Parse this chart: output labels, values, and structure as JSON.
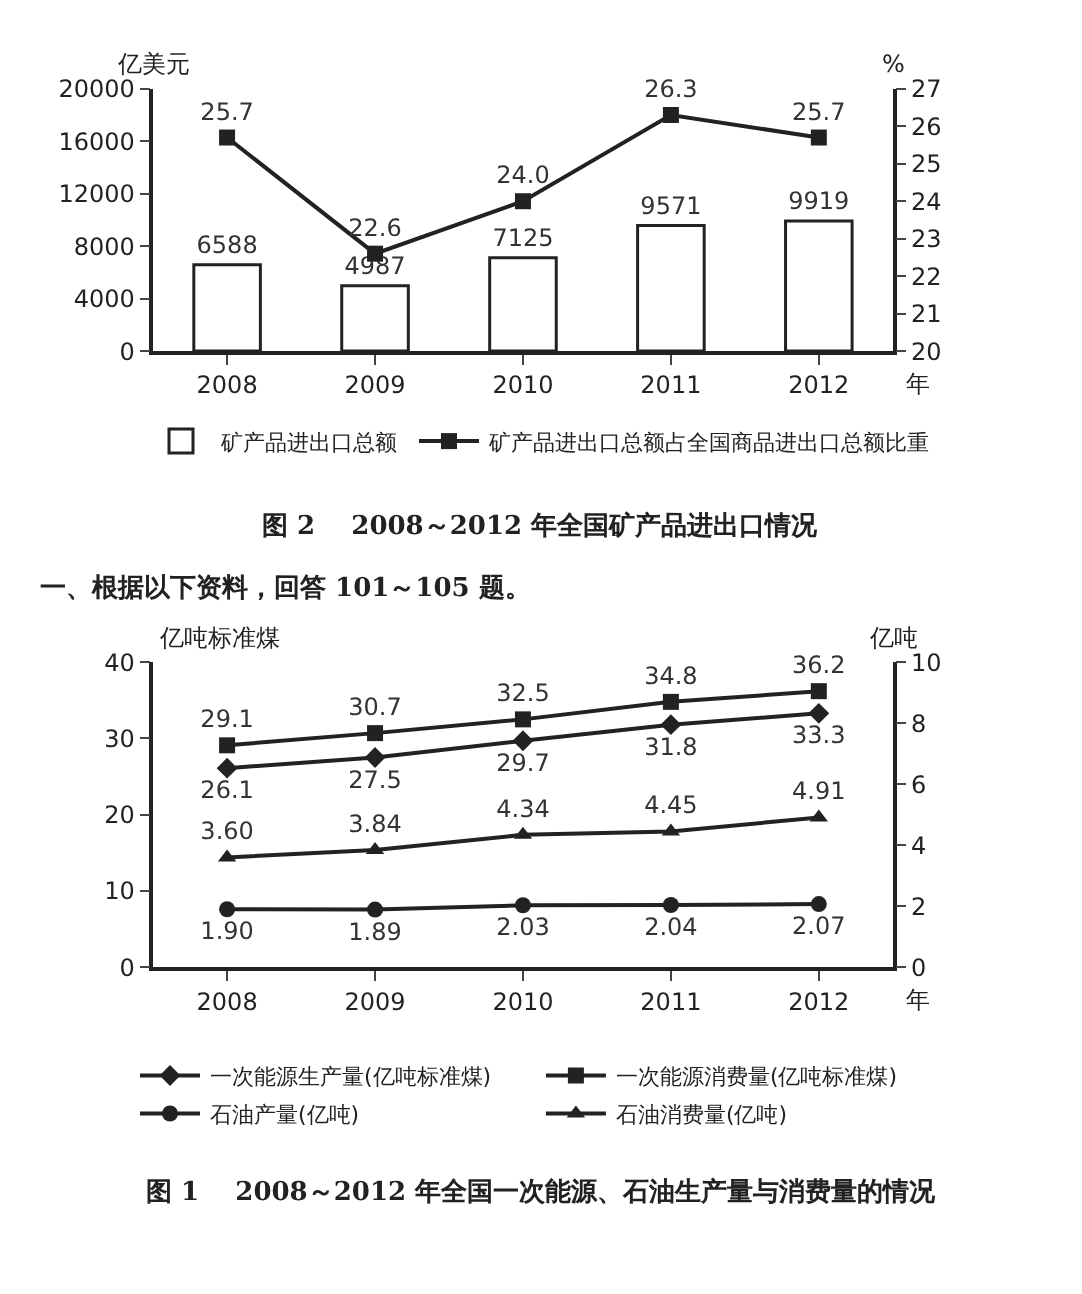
{
  "chart_data": [
    {
      "type": "bar",
      "title": "图 2    2008～2012 年全国矿产品进出口情况",
      "xlabel": "年",
      "ylabel": "亿美元",
      "y2label": "%",
      "categories": [
        "2008",
        "2009",
        "2010",
        "2011",
        "2012"
      ],
      "series": [
        {
          "name": "矿产品进出口总额",
          "type": "bar",
          "color": "#ffffff",
          "values": [
            6588,
            4987,
            7125,
            9571,
            9919
          ],
          "value_labels": [
            "6588",
            "4987",
            "7125",
            "9571",
            "9919"
          ]
        },
        {
          "name": "矿产品进出口总额占全国商品进出口总额比重",
          "type": "line",
          "axis": "y2",
          "marker": "square",
          "color": "#222222",
          "values": [
            25.7,
            22.6,
            24.0,
            26.3,
            25.7
          ],
          "value_labels": [
            "25.7",
            "22.6",
            "24.0",
            "26.3",
            "25.7"
          ]
        }
      ],
      "ylim": [
        0,
        20000
      ],
      "yticks": [
        0,
        4000,
        8000,
        12000,
        16000,
        20000
      ],
      "y2lim": [
        20,
        27
      ],
      "y2ticks": [
        20,
        21,
        22,
        23,
        24,
        25,
        26,
        27
      ],
      "legend": "bottom"
    },
    {
      "type": "line",
      "title": "图 1    2008～2012 年全国一次能源、石油生产量与消费量的情况",
      "xlabel": "年",
      "ylabel": "亿吨标准煤",
      "y2label": "亿吨",
      "annotations": [
        "一、根据以下资料，回答 101～105 题。"
      ],
      "categories": [
        "2008",
        "2009",
        "2010",
        "2011",
        "2012"
      ],
      "series": [
        {
          "name": "一次能源生产量(亿吨标准煤)",
          "marker": "diamond",
          "color": "#222222",
          "values": [
            26.1,
            27.5,
            29.7,
            31.8,
            33.3
          ],
          "value_labels": [
            "26.1",
            "27.5",
            "29.7",
            "31.8",
            "33.3"
          ]
        },
        {
          "name": "一次能源消费量(亿吨标准煤)",
          "marker": "square",
          "color": "#222222",
          "values": [
            29.1,
            30.7,
            32.5,
            34.8,
            36.2
          ],
          "value_labels": [
            "29.1",
            "30.7",
            "32.5",
            "34.8",
            "36.2"
          ]
        },
        {
          "name": "石油产量(亿吨)",
          "axis": "y2",
          "marker": "circle",
          "color": "#222222",
          "values": [
            1.9,
            1.89,
            2.03,
            2.04,
            2.07
          ],
          "value_labels": [
            "1.90",
            "1.89",
            "2.03",
            "2.04",
            "2.07"
          ]
        },
        {
          "name": "石油消费量(亿吨)",
          "axis": "y2",
          "marker": "triangle",
          "color": "#222222",
          "values": [
            3.6,
            3.84,
            4.34,
            4.45,
            4.91
          ],
          "value_labels": [
            "3.60",
            "3.84",
            "4.34",
            "4.45",
            "4.91"
          ]
        }
      ],
      "ylim": [
        0,
        40
      ],
      "yticks": [
        0,
        10,
        20,
        30,
        40
      ],
      "y2lim": [
        0,
        10
      ],
      "y2ticks": [
        0,
        2,
        4,
        6,
        8,
        10
      ],
      "legend": "bottom"
    }
  ]
}
